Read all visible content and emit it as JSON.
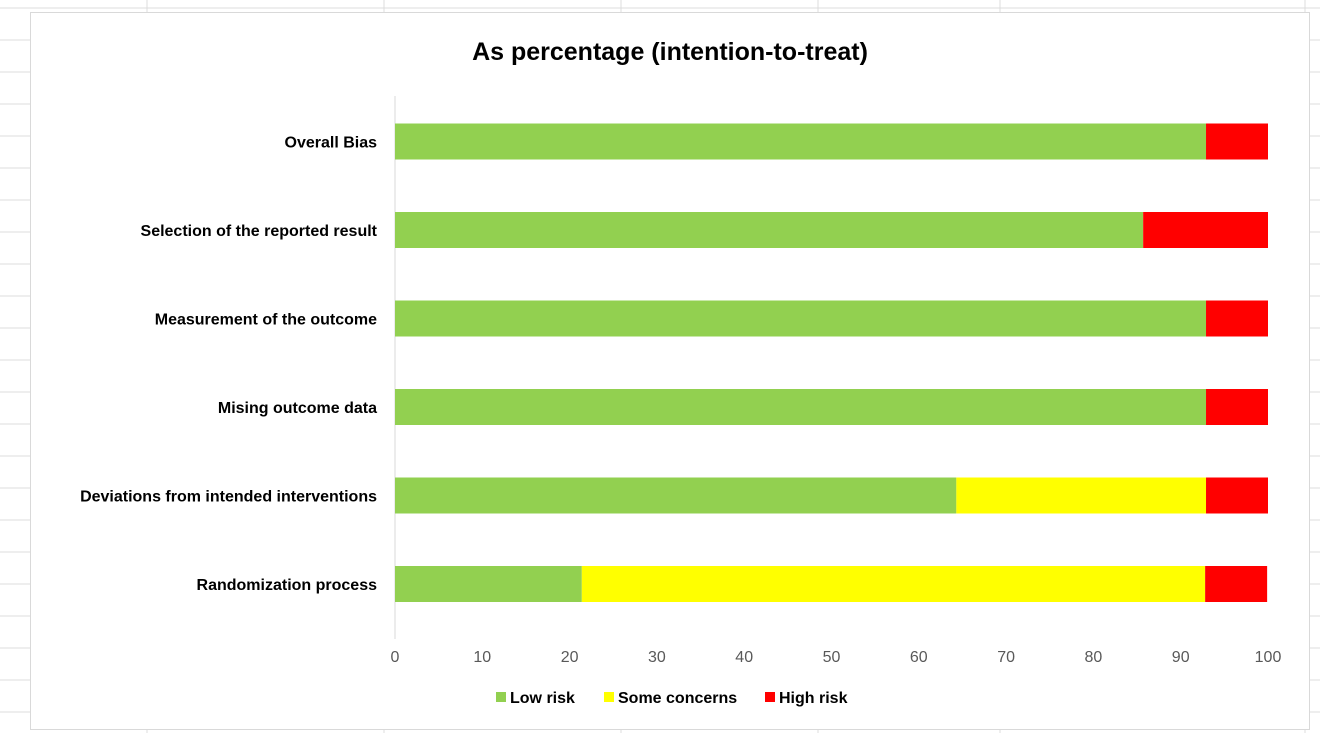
{
  "chart_data": {
    "type": "bar",
    "orientation": "horizontal",
    "stacked": true,
    "title": "As percentage (intention-to-treat)",
    "xlabel": "",
    "ylabel": "",
    "xlim": [
      0,
      100
    ],
    "x_ticks": [
      "0",
      "10",
      "20",
      "30",
      "40",
      "50",
      "60",
      "70",
      "80",
      "90",
      "100"
    ],
    "grid": false,
    "legend_position": "bottom",
    "categories": [
      "Overall Bias",
      "Selection of the reported result",
      "Measurement of the outcome",
      "Mising outcome data",
      "Deviations from intended interventions",
      "Randomization process"
    ],
    "series": [
      {
        "name": "Low risk",
        "color": "#92d050",
        "values": [
          92.9,
          85.7,
          92.9,
          92.9,
          64.3,
          21.4
        ]
      },
      {
        "name": "Some concerns",
        "color": "#ffff00",
        "values": [
          0,
          0,
          0,
          0,
          28.6,
          71.4
        ]
      },
      {
        "name": "High risk",
        "color": "#ff0000",
        "values": [
          7.1,
          14.3,
          7.1,
          7.1,
          7.1,
          7.1
        ]
      }
    ]
  }
}
